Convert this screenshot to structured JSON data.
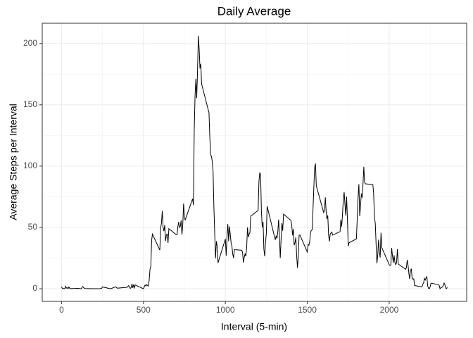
{
  "chart_data": {
    "type": "line",
    "title": "Daily Average",
    "x_label": "Interval (5-min)",
    "y_label": "Average Steps per Interval",
    "xlim": [
      -117.75,
      2472.75
    ],
    "ylim": [
      -10.3,
      216.5
    ],
    "xticks": [
      0,
      500,
      1000,
      1500,
      2000
    ],
    "yticks": [
      0,
      50,
      100,
      150,
      200
    ],
    "x_minor_ticks": [
      250,
      750,
      1250,
      1750,
      2250
    ],
    "y_minor_ticks": [
      25,
      75,
      125,
      175
    ],
    "grid": true,
    "series": [
      {
        "color": "#000000",
        "x": [
          0,
          5,
          10,
          15,
          20,
          25,
          30,
          35,
          40,
          45,
          50,
          55,
          100,
          110,
          120,
          125,
          130,
          140,
          200,
          230,
          245,
          250,
          300,
          330,
          340,
          400,
          410,
          420,
          425,
          430,
          435,
          440,
          445,
          450,
          500,
          505,
          510,
          515,
          520,
          530,
          535,
          540,
          545,
          550,
          555,
          600,
          605,
          610,
          615,
          620,
          625,
          630,
          635,
          640,
          645,
          650,
          655,
          700,
          705,
          710,
          715,
          720,
          725,
          730,
          735,
          740,
          745,
          750,
          755,
          800,
          805,
          810,
          815,
          820,
          825,
          830,
          835,
          840,
          845,
          850,
          855,
          900,
          905,
          910,
          915,
          920,
          925,
          930,
          935,
          940,
          945,
          950,
          955,
          1000,
          1005,
          1010,
          1015,
          1020,
          1025,
          1030,
          1035,
          1040,
          1045,
          1050,
          1055,
          1100,
          1105,
          1110,
          1115,
          1120,
          1125,
          1130,
          1135,
          1140,
          1145,
          1150,
          1155,
          1200,
          1205,
          1210,
          1215,
          1220,
          1225,
          1230,
          1235,
          1240,
          1245,
          1250,
          1255,
          1300,
          1305,
          1310,
          1315,
          1320,
          1325,
          1330,
          1335,
          1340,
          1345,
          1350,
          1355,
          1400,
          1405,
          1410,
          1415,
          1420,
          1425,
          1430,
          1435,
          1440,
          1445,
          1450,
          1455,
          1500,
          1505,
          1510,
          1515,
          1520,
          1525,
          1530,
          1535,
          1540,
          1545,
          1550,
          1555,
          1600,
          1605,
          1610,
          1615,
          1620,
          1625,
          1630,
          1635,
          1640,
          1645,
          1650,
          1655,
          1700,
          1705,
          1710,
          1715,
          1720,
          1725,
          1730,
          1735,
          1740,
          1745,
          1750,
          1755,
          1800,
          1805,
          1810,
          1815,
          1820,
          1825,
          1830,
          1835,
          1840,
          1845,
          1850,
          1855,
          1900,
          1905,
          1910,
          1915,
          1920,
          1925,
          1930,
          1935,
          1940,
          1945,
          1950,
          1955,
          2000,
          2005,
          2010,
          2015,
          2020,
          2025,
          2030,
          2035,
          2040,
          2045,
          2050,
          2055,
          2100,
          2105,
          2110,
          2115,
          2120,
          2125,
          2130,
          2135,
          2140,
          2145,
          2150,
          2155,
          2200,
          2205,
          2210,
          2215,
          2220,
          2225,
          2230,
          2235,
          2240,
          2245,
          2250,
          2255,
          2300,
          2305,
          2310,
          2315,
          2320,
          2325,
          2330,
          2335,
          2340,
          2345,
          2350,
          2355
        ],
        "values": [
          1.7,
          0.3,
          0.1,
          0.2,
          0.1,
          2.1,
          0.5,
          0.9,
          0,
          1.5,
          0.3,
          0.1,
          0.3,
          0.2,
          0,
          1.1,
          1.8,
          0.2,
          0,
          0,
          0.3,
          1.5,
          0,
          1.6,
          0.5,
          1.2,
          2.6,
          0.3,
          0.9,
          4.1,
          0.7,
          3.5,
          0.8,
          3.1,
          0,
          1.6,
          3,
          2.2,
          3.3,
          2.2,
          6.9,
          16,
          18,
          39.5,
          44.5,
          31.5,
          49.3,
          53.8,
          63.5,
          50,
          47,
          52,
          39,
          44,
          44.6,
          37.4,
          49,
          44,
          44,
          50.5,
          54.5,
          49.9,
          50.9,
          55.7,
          44.3,
          52.3,
          69.5,
          57.8,
          56.2,
          73.4,
          68.2,
          129.4,
          157.5,
          171.2,
          155.4,
          177.3,
          206.2,
          195.9,
          179.6,
          183.4,
          167,
          143.5,
          124,
          109.1,
          108.1,
          103.7,
          95.9,
          66.2,
          45.2,
          24.8,
          38.8,
          34.9,
          21.1,
          40.6,
          27,
          42.4,
          52.7,
          38.9,
          50.8,
          44.3,
          37.4,
          34.7,
          28.3,
          25.1,
          31.9,
          31.4,
          29.7,
          21.3,
          25.5,
          28.4,
          26.5,
          33.4,
          50,
          42,
          44.6,
          46,
          59.2,
          63.9,
          87.7,
          94.8,
          92.8,
          63.4,
          50.2,
          54.5,
          32.4,
          26.5,
          37.7,
          45.1,
          67.3,
          42.3,
          39.9,
          43.3,
          41,
          46.2,
          56.4,
          42.8,
          25.1,
          40,
          53.5,
          47.3,
          60.8,
          55.8,
          52,
          43.6,
          48.7,
          35.5,
          37.5,
          41.8,
          27.5,
          17.1,
          26.1,
          43.6,
          43.8,
          30,
          36.1,
          35.5,
          38.8,
          46,
          47.75,
          48.1,
          65.3,
          82.9,
          98.7,
          102.1,
          84,
          62.1,
          64.1,
          74.5,
          63.2,
          56.9,
          59.8,
          43.9,
          38.6,
          44.7,
          45.5,
          46.2,
          43.7,
          46.6,
          56.3,
          50.7,
          61.2,
          72.7,
          78.9,
          68.9,
          59.7,
          75.1,
          56.5,
          34.8,
          37.5,
          40.7,
          58,
          74.7,
          85.3,
          59.3,
          67.8,
          77.7,
          74.2,
          85.3,
          99.5,
          86.6,
          85.6,
          84.9,
          77.8,
          58,
          53.4,
          36.3,
          20.7,
          27.4,
          40,
          30.2,
          25.5,
          45.7,
          33.5,
          19.6,
          19,
          19.3,
          33.3,
          26.8,
          21.2,
          27.3,
          21.3,
          19.6,
          21.3,
          32.3,
          20.2,
          15.9,
          17.2,
          23.5,
          19.2,
          12.5,
          8,
          14.7,
          16.3,
          8.7,
          7.8,
          8.1,
          2.6,
          1.5,
          3.7,
          4.8,
          8.5,
          7.1,
          8.7,
          9.8,
          2.2,
          0.3,
          0.1,
          1.6,
          4.6,
          3.3,
          2.8,
          0,
          0.8,
          1,
          1.6,
          2.6,
          4.7,
          3.3,
          0.6,
          0.2,
          1.1
        ]
      }
    ]
  }
}
